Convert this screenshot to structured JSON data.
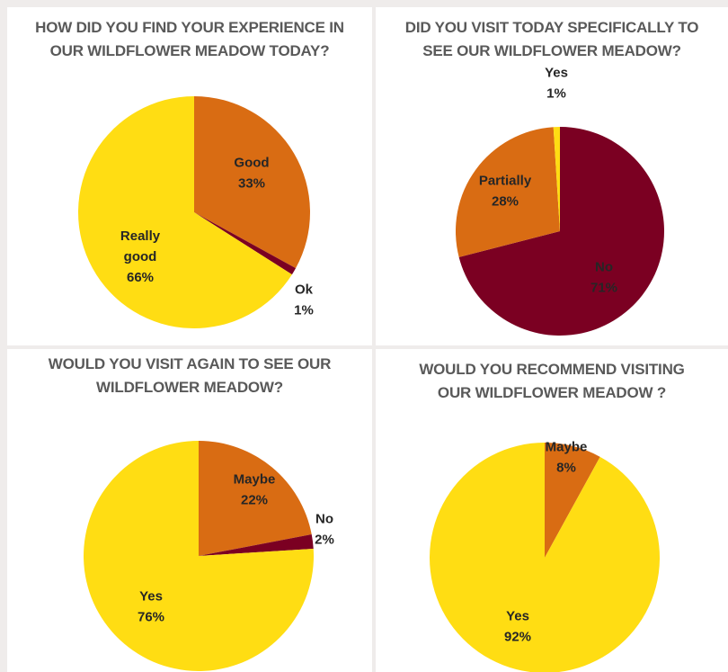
{
  "colors": {
    "yellow": "#ffdd13",
    "orange": "#d96c13",
    "maroon": "#7b0022"
  },
  "chart_data": [
    {
      "type": "pie",
      "title_lines": [
        "HOW DID YOU FIND YOUR EXPERIENCE IN",
        "OUR WILDFLOWER MEADOW TODAY?"
      ],
      "slices": [
        {
          "label_lines": [
            "Good",
            "33%"
          ],
          "value": 33,
          "color": "#d96c13"
        },
        {
          "label_lines": [
            "Ok",
            "1%"
          ],
          "value": 1,
          "color": "#7b0022"
        },
        {
          "label_lines": [
            "Really",
            "good",
            "66%"
          ],
          "value": 66,
          "color": "#ffdd13"
        }
      ]
    },
    {
      "type": "pie",
      "title_lines": [
        "DID YOU VISIT TODAY SPECIFICALLY TO",
        "SEE OUR WILDFLOWER MEADOW?"
      ],
      "slices": [
        {
          "label_lines": [
            "No",
            "71%"
          ],
          "value": 71,
          "color": "#7b0022"
        },
        {
          "label_lines": [
            "Partially",
            "28%"
          ],
          "value": 28,
          "color": "#d96c13"
        },
        {
          "label_lines": [
            "Yes",
            "1%"
          ],
          "value": 1,
          "color": "#ffdd13"
        }
      ]
    },
    {
      "type": "pie",
      "title_lines": [
        "WOULD YOU VISIT AGAIN TO SEE OUR",
        "WILDFLOWER MEADOW?"
      ],
      "slices": [
        {
          "label_lines": [
            "Maybe",
            "22%"
          ],
          "value": 22,
          "color": "#d96c13"
        },
        {
          "label_lines": [
            "No",
            "2%"
          ],
          "value": 2,
          "color": "#7b0022"
        },
        {
          "label_lines": [
            "Yes",
            "76%"
          ],
          "value": 76,
          "color": "#ffdd13"
        }
      ]
    },
    {
      "type": "pie",
      "title_lines": [
        "WOULD YOU RECOMMEND VISITING",
        "OUR WILDFLOWER MEADOW ?"
      ],
      "slices": [
        {
          "label_lines": [
            "Maybe",
            "8%"
          ],
          "value": 8,
          "color": "#d96c13"
        },
        {
          "label_lines": [
            "Yes",
            "92%"
          ],
          "value": 92,
          "color": "#ffdd13"
        }
      ]
    }
  ]
}
